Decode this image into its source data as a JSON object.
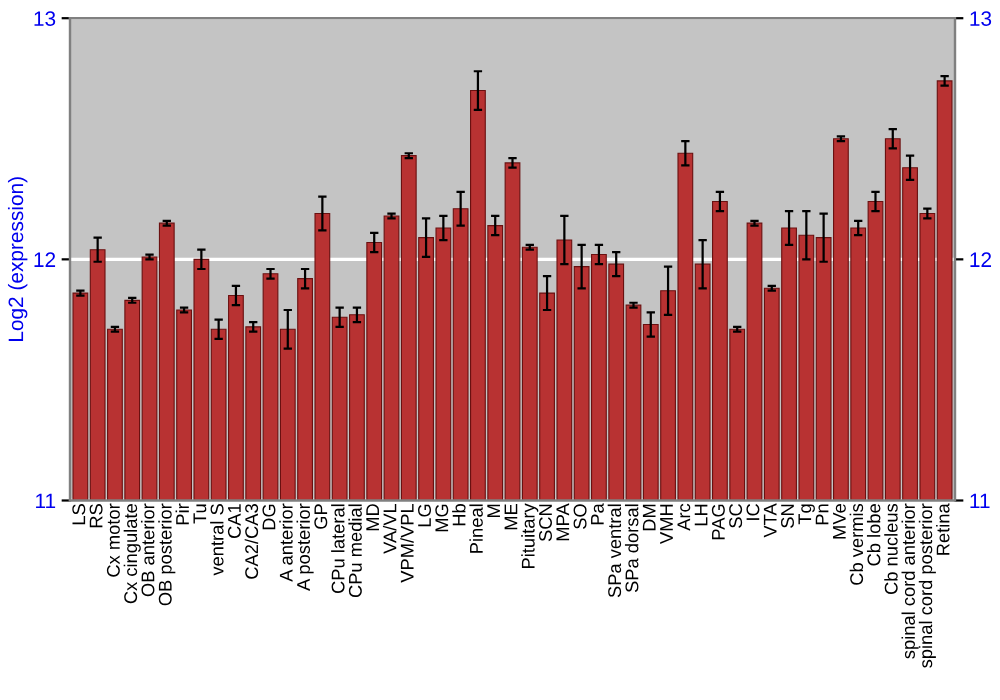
{
  "chart_data": {
    "type": "bar",
    "ylabel": "Log2 (expression)",
    "categories": [
      "LS",
      "RS",
      "Cx motor",
      "Cx cingulate",
      "OB anterior",
      "OB posterior",
      "Pir",
      "Tu",
      "ventral S",
      "CA1",
      "CA2/CA3",
      "DG",
      "A anterior",
      "A posterior",
      "GP",
      "CPu lateral",
      "CPu medial",
      "MD",
      "VA/VL",
      "VPM/VPL",
      "LG",
      "MG",
      "Hb",
      "Pineal",
      "M",
      "ME",
      "Pituitary",
      "SCN",
      "MPA",
      "SO",
      "Pa",
      "SPa ventral",
      "SPa dorsal",
      "DM",
      "VMH",
      "Arc",
      "LH",
      "PAG",
      "SC",
      "IC",
      "VTA",
      "SN",
      "Tg",
      "Pn",
      "MVe",
      "Cb vermis",
      "Cb lobe",
      "Cb nucleus",
      "spinal cord anterior",
      "spinal cord posterior",
      "Retina"
    ],
    "values": [
      11.86,
      12.04,
      11.71,
      11.83,
      12.01,
      12.15,
      11.79,
      12.0,
      11.71,
      11.85,
      11.72,
      11.94,
      11.71,
      11.92,
      12.19,
      11.76,
      11.77,
      12.07,
      12.18,
      12.43,
      12.09,
      12.13,
      12.21,
      12.7,
      12.14,
      12.4,
      12.05,
      11.86,
      12.08,
      11.97,
      12.02,
      11.98,
      11.81,
      11.73,
      11.87,
      12.44,
      11.98,
      12.24,
      11.71,
      12.15,
      11.88,
      12.13,
      12.1,
      12.09,
      12.5,
      12.13,
      12.24,
      12.5,
      12.38,
      12.19,
      12.74
    ],
    "errors": [
      0.01,
      0.05,
      0.01,
      0.01,
      0.01,
      0.01,
      0.01,
      0.04,
      0.04,
      0.04,
      0.02,
      0.02,
      0.08,
      0.04,
      0.07,
      0.04,
      0.03,
      0.04,
      0.01,
      0.01,
      0.08,
      0.05,
      0.07,
      0.08,
      0.04,
      0.02,
      0.01,
      0.07,
      0.1,
      0.09,
      0.04,
      0.05,
      0.01,
      0.05,
      0.1,
      0.05,
      0.1,
      0.04,
      0.01,
      0.01,
      0.01,
      0.07,
      0.1,
      0.1,
      0.01,
      0.03,
      0.04,
      0.04,
      0.05,
      0.02,
      0.02
    ],
    "color": "#b83232",
    "ylim": [
      11,
      13
    ],
    "yticks": [
      11,
      12,
      13
    ],
    "y2lim": [
      11,
      13
    ],
    "y2ticks": [
      11,
      12,
      13
    ],
    "grid": "y"
  }
}
